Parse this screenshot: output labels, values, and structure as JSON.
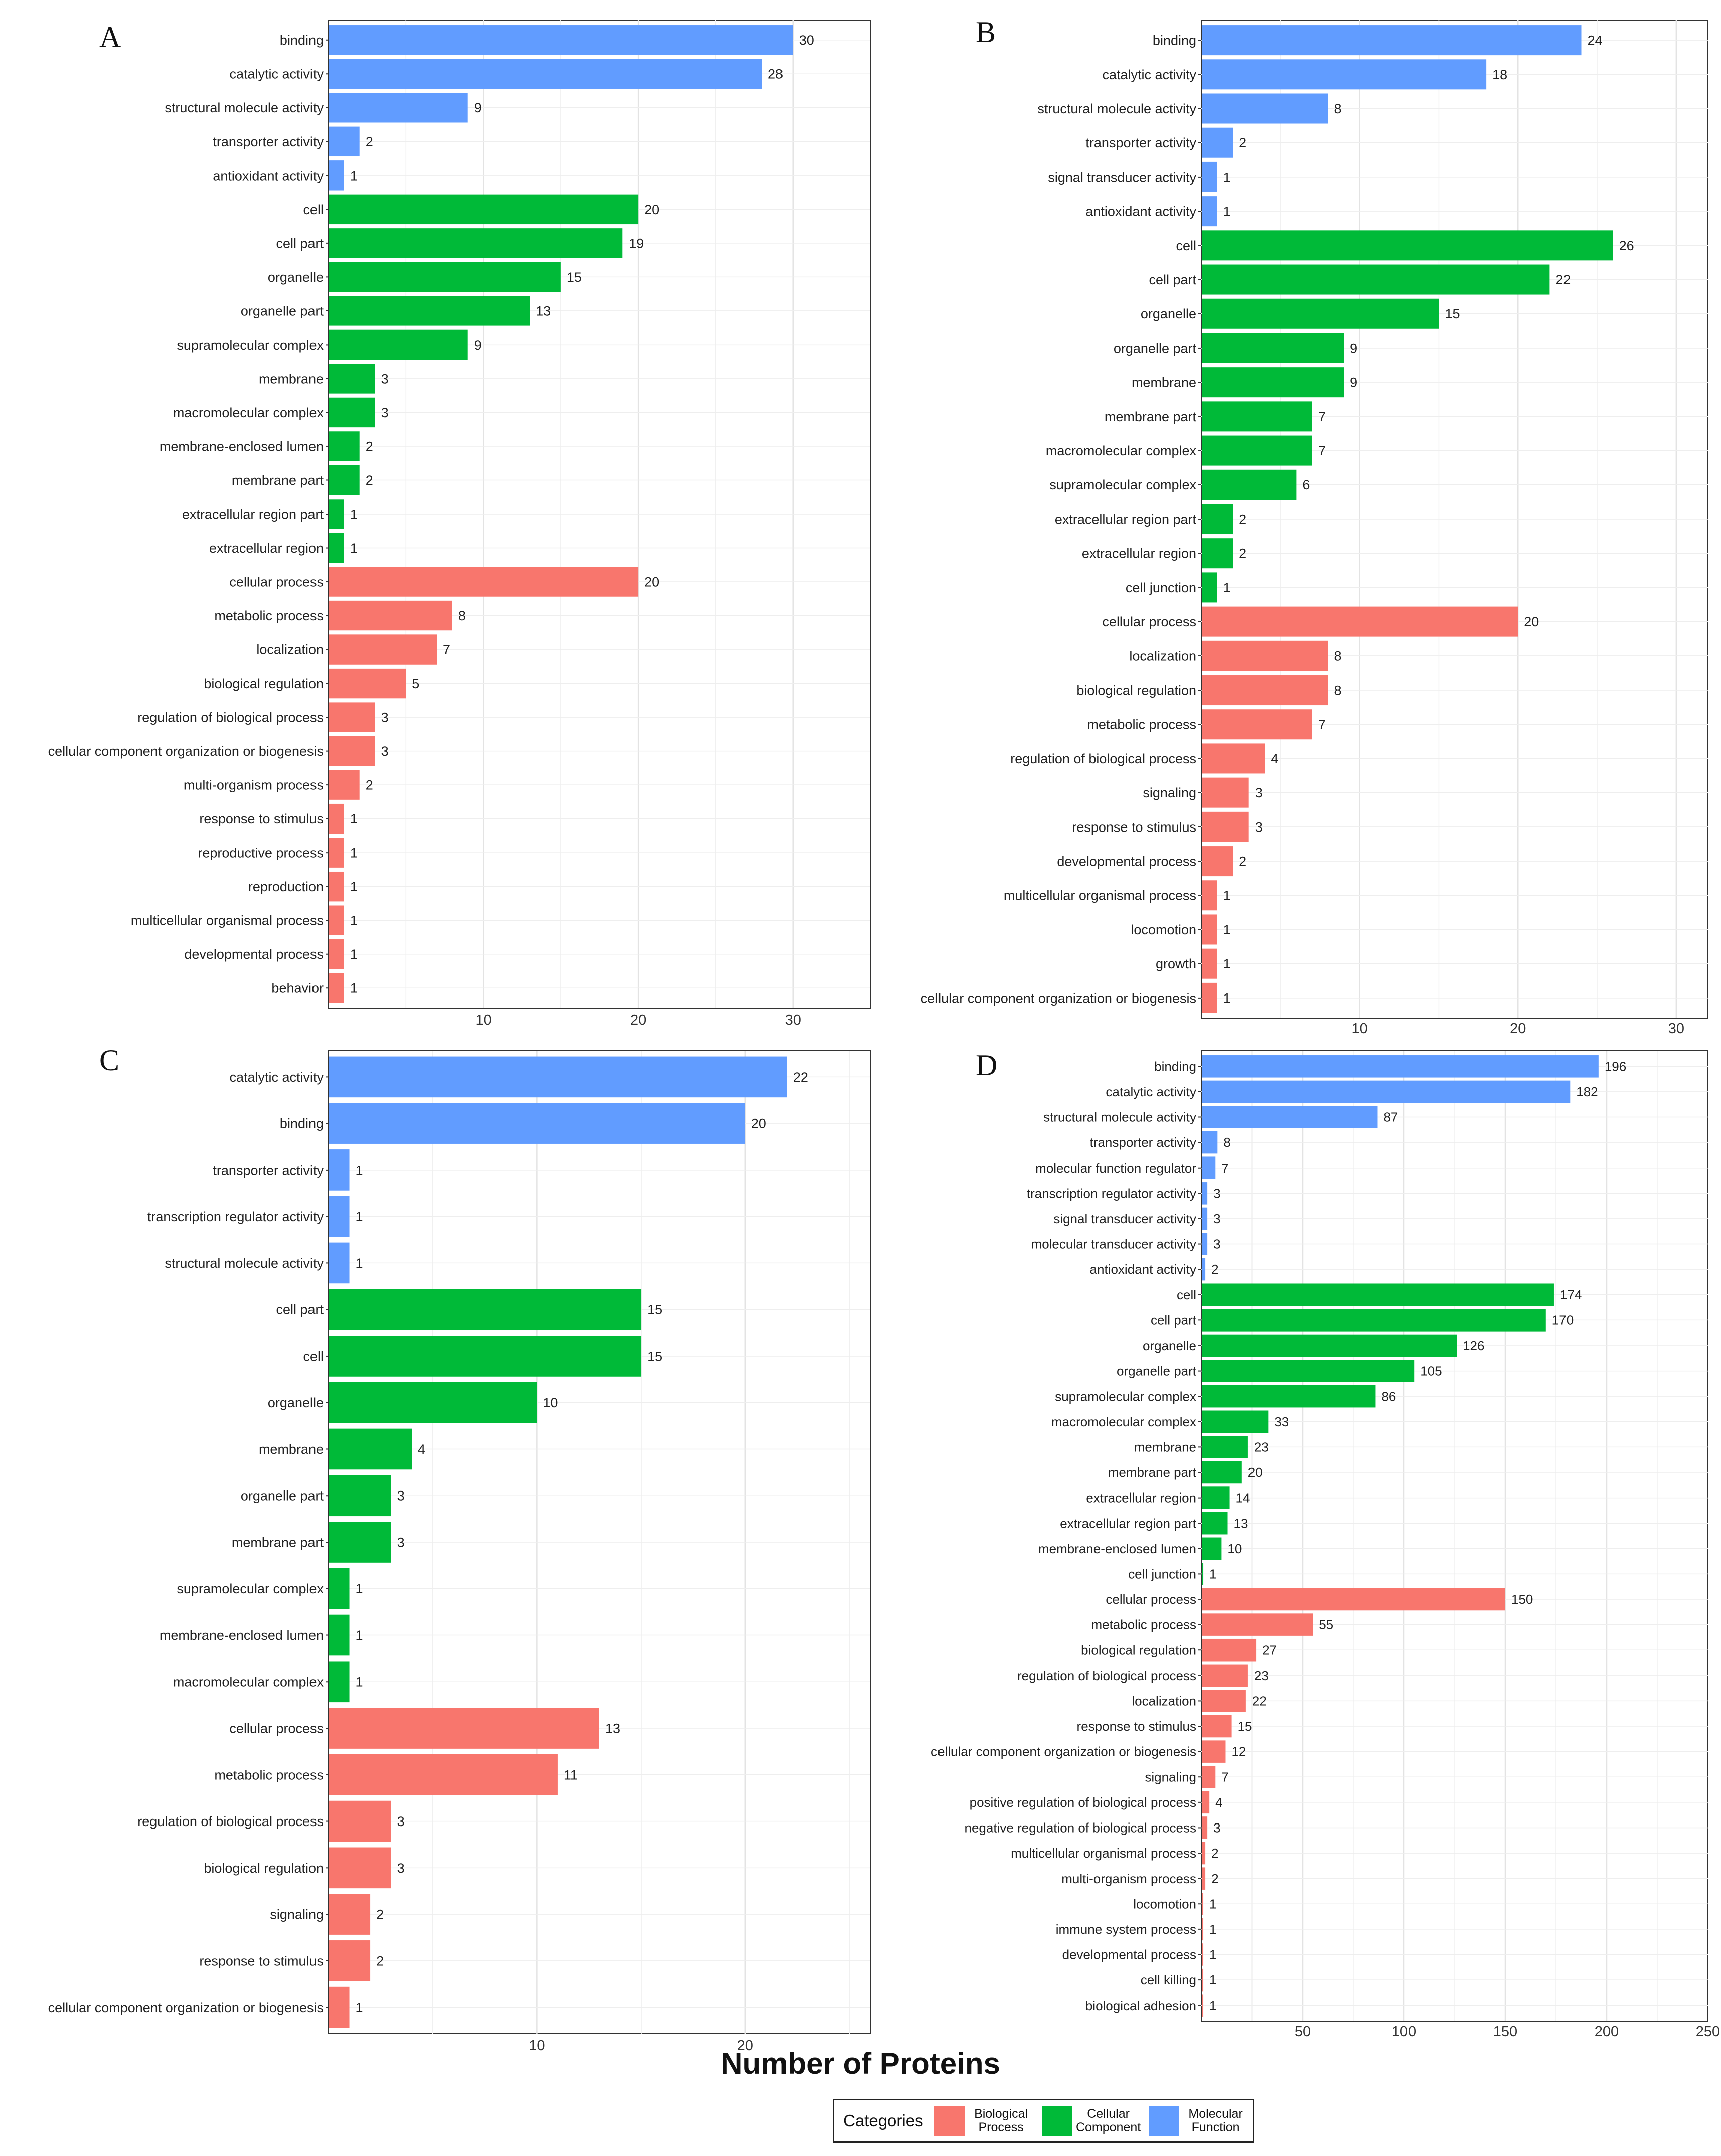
{
  "colors": {
    "Biological Process": "#f8766d",
    "Cellular Component": "#00ba38",
    "Molecular Function": "#619cff"
  },
  "x_axis_title": "Number of Proteins",
  "legend": {
    "title": "Categories",
    "items": [
      {
        "label": "Biological Process",
        "category": "Biological Process"
      },
      {
        "label": "Cellular Component",
        "category": "Cellular Component"
      },
      {
        "label": "Molecular Function",
        "category": "Molecular Function"
      }
    ]
  },
  "chart_data": [
    {
      "panel": "A",
      "type": "bar",
      "orientation": "horizontal",
      "xlabel": "Number of Proteins",
      "xlim": [
        0,
        35
      ],
      "xticks": [
        10,
        20,
        30
      ],
      "bars": [
        {
          "label": "binding",
          "value": 30,
          "category": "Molecular Function"
        },
        {
          "label": "catalytic activity",
          "value": 28,
          "category": "Molecular Function"
        },
        {
          "label": "structural molecule activity",
          "value": 9,
          "category": "Molecular Function"
        },
        {
          "label": "transporter activity",
          "value": 2,
          "category": "Molecular Function"
        },
        {
          "label": "antioxidant activity",
          "value": 1,
          "category": "Molecular Function"
        },
        {
          "label": "cell",
          "value": 20,
          "category": "Cellular Component"
        },
        {
          "label": "cell part",
          "value": 19,
          "category": "Cellular Component"
        },
        {
          "label": "organelle",
          "value": 15,
          "category": "Cellular Component"
        },
        {
          "label": "organelle part",
          "value": 13,
          "category": "Cellular Component"
        },
        {
          "label": "supramolecular complex",
          "value": 9,
          "category": "Cellular Component"
        },
        {
          "label": "membrane",
          "value": 3,
          "category": "Cellular Component"
        },
        {
          "label": "macromolecular complex",
          "value": 3,
          "category": "Cellular Component"
        },
        {
          "label": "membrane-enclosed lumen",
          "value": 2,
          "category": "Cellular Component"
        },
        {
          "label": "membrane part",
          "value": 2,
          "category": "Cellular Component"
        },
        {
          "label": "extracellular region part",
          "value": 1,
          "category": "Cellular Component"
        },
        {
          "label": "extracellular region",
          "value": 1,
          "category": "Cellular Component"
        },
        {
          "label": "cellular process",
          "value": 20,
          "category": "Biological Process"
        },
        {
          "label": "metabolic process",
          "value": 8,
          "category": "Biological Process"
        },
        {
          "label": "localization",
          "value": 7,
          "category": "Biological Process"
        },
        {
          "label": "biological regulation",
          "value": 5,
          "category": "Biological Process"
        },
        {
          "label": "regulation of biological process",
          "value": 3,
          "category": "Biological Process"
        },
        {
          "label": "cellular component organization or biogenesis",
          "value": 3,
          "category": "Biological Process"
        },
        {
          "label": "multi-organism process",
          "value": 2,
          "category": "Biological Process"
        },
        {
          "label": "response to stimulus",
          "value": 1,
          "category": "Biological Process"
        },
        {
          "label": "reproductive process",
          "value": 1,
          "category": "Biological Process"
        },
        {
          "label": "reproduction",
          "value": 1,
          "category": "Biological Process"
        },
        {
          "label": "multicellular organismal process",
          "value": 1,
          "category": "Biological Process"
        },
        {
          "label": "developmental process",
          "value": 1,
          "category": "Biological Process"
        },
        {
          "label": "behavior",
          "value": 1,
          "category": "Biological Process"
        }
      ]
    },
    {
      "panel": "B",
      "type": "bar",
      "orientation": "horizontal",
      "xlabel": "Number of Proteins",
      "xlim": [
        0,
        32
      ],
      "xticks": [
        10,
        20,
        30
      ],
      "bars": [
        {
          "label": "binding",
          "value": 24,
          "category": "Molecular Function"
        },
        {
          "label": "catalytic activity",
          "value": 18,
          "category": "Molecular Function"
        },
        {
          "label": "structural molecule activity",
          "value": 8,
          "category": "Molecular Function"
        },
        {
          "label": "transporter activity",
          "value": 2,
          "category": "Molecular Function"
        },
        {
          "label": "signal transducer activity",
          "value": 1,
          "category": "Molecular Function"
        },
        {
          "label": "antioxidant activity",
          "value": 1,
          "category": "Molecular Function"
        },
        {
          "label": "cell",
          "value": 26,
          "category": "Cellular Component"
        },
        {
          "label": "cell part",
          "value": 22,
          "category": "Cellular Component"
        },
        {
          "label": "organelle",
          "value": 15,
          "category": "Cellular Component"
        },
        {
          "label": "organelle part",
          "value": 9,
          "category": "Cellular Component"
        },
        {
          "label": "membrane",
          "value": 9,
          "category": "Cellular Component"
        },
        {
          "label": "membrane part",
          "value": 7,
          "category": "Cellular Component"
        },
        {
          "label": "macromolecular complex",
          "value": 7,
          "category": "Cellular Component"
        },
        {
          "label": "supramolecular complex",
          "value": 6,
          "category": "Cellular Component"
        },
        {
          "label": "extracellular region part",
          "value": 2,
          "category": "Cellular Component"
        },
        {
          "label": "extracellular region",
          "value": 2,
          "category": "Cellular Component"
        },
        {
          "label": "cell junction",
          "value": 1,
          "category": "Cellular Component"
        },
        {
          "label": "cellular process",
          "value": 20,
          "category": "Biological Process"
        },
        {
          "label": "localization",
          "value": 8,
          "category": "Biological Process"
        },
        {
          "label": "biological regulation",
          "value": 8,
          "category": "Biological Process"
        },
        {
          "label": "metabolic process",
          "value": 7,
          "category": "Biological Process"
        },
        {
          "label": "regulation of biological process",
          "value": 4,
          "category": "Biological Process"
        },
        {
          "label": "signaling",
          "value": 3,
          "category": "Biological Process"
        },
        {
          "label": "response to stimulus",
          "value": 3,
          "category": "Biological Process"
        },
        {
          "label": "developmental process",
          "value": 2,
          "category": "Biological Process"
        },
        {
          "label": "multicellular organismal process",
          "value": 1,
          "category": "Biological Process"
        },
        {
          "label": "locomotion",
          "value": 1,
          "category": "Biological Process"
        },
        {
          "label": "growth",
          "value": 1,
          "category": "Biological Process"
        },
        {
          "label": "cellular component organization or biogenesis",
          "value": 1,
          "category": "Biological Process"
        }
      ]
    },
    {
      "panel": "C",
      "type": "bar",
      "orientation": "horizontal",
      "xlabel": "Number of Proteins",
      "xlim": [
        0,
        26
      ],
      "xticks": [
        10,
        20
      ],
      "bars": [
        {
          "label": "catalytic activity",
          "value": 22,
          "category": "Molecular Function"
        },
        {
          "label": "binding",
          "value": 20,
          "category": "Molecular Function"
        },
        {
          "label": "transporter activity",
          "value": 1,
          "category": "Molecular Function"
        },
        {
          "label": "transcription regulator activity",
          "value": 1,
          "category": "Molecular Function"
        },
        {
          "label": "structural molecule activity",
          "value": 1,
          "category": "Molecular Function"
        },
        {
          "label": "cell part",
          "value": 15,
          "category": "Cellular Component"
        },
        {
          "label": "cell",
          "value": 15,
          "category": "Cellular Component"
        },
        {
          "label": "organelle",
          "value": 10,
          "category": "Cellular Component"
        },
        {
          "label": "membrane",
          "value": 4,
          "category": "Cellular Component"
        },
        {
          "label": "organelle part",
          "value": 3,
          "category": "Cellular Component"
        },
        {
          "label": "membrane part",
          "value": 3,
          "category": "Cellular Component"
        },
        {
          "label": "supramolecular complex",
          "value": 1,
          "category": "Cellular Component"
        },
        {
          "label": "membrane-enclosed lumen",
          "value": 1,
          "category": "Cellular Component"
        },
        {
          "label": "macromolecular complex",
          "value": 1,
          "category": "Cellular Component"
        },
        {
          "label": "cellular process",
          "value": 13,
          "category": "Biological Process"
        },
        {
          "label": "metabolic process",
          "value": 11,
          "category": "Biological Process"
        },
        {
          "label": "regulation of biological process",
          "value": 3,
          "category": "Biological Process"
        },
        {
          "label": "biological regulation",
          "value": 3,
          "category": "Biological Process"
        },
        {
          "label": "signaling",
          "value": 2,
          "category": "Biological Process"
        },
        {
          "label": "response to stimulus",
          "value": 2,
          "category": "Biological Process"
        },
        {
          "label": "cellular component organization or biogenesis",
          "value": 1,
          "category": "Biological Process"
        }
      ]
    },
    {
      "panel": "D",
      "type": "bar",
      "orientation": "horizontal",
      "xlabel": "Number of Proteins",
      "xlim": [
        0,
        250
      ],
      "xticks": [
        50,
        100,
        150,
        200,
        250
      ],
      "bars": [
        {
          "label": "binding",
          "value": 196,
          "category": "Molecular Function"
        },
        {
          "label": "catalytic activity",
          "value": 182,
          "category": "Molecular Function"
        },
        {
          "label": "structural molecule activity",
          "value": 87,
          "category": "Molecular Function"
        },
        {
          "label": "transporter activity",
          "value": 8,
          "category": "Molecular Function"
        },
        {
          "label": "molecular function regulator",
          "value": 7,
          "category": "Molecular Function"
        },
        {
          "label": "transcription regulator activity",
          "value": 3,
          "category": "Molecular Function"
        },
        {
          "label": "signal transducer activity",
          "value": 3,
          "category": "Molecular Function"
        },
        {
          "label": "molecular transducer activity",
          "value": 3,
          "category": "Molecular Function"
        },
        {
          "label": "antioxidant activity",
          "value": 2,
          "category": "Molecular Function"
        },
        {
          "label": "cell",
          "value": 174,
          "category": "Cellular Component"
        },
        {
          "label": "cell part",
          "value": 170,
          "category": "Cellular Component"
        },
        {
          "label": "organelle",
          "value": 126,
          "category": "Cellular Component"
        },
        {
          "label": "organelle part",
          "value": 105,
          "category": "Cellular Component"
        },
        {
          "label": "supramolecular complex",
          "value": 86,
          "category": "Cellular Component"
        },
        {
          "label": "macromolecular complex",
          "value": 33,
          "category": "Cellular Component"
        },
        {
          "label": "membrane",
          "value": 23,
          "category": "Cellular Component"
        },
        {
          "label": "membrane part",
          "value": 20,
          "category": "Cellular Component"
        },
        {
          "label": "extracellular region",
          "value": 14,
          "category": "Cellular Component"
        },
        {
          "label": "extracellular region part",
          "value": 13,
          "category": "Cellular Component"
        },
        {
          "label": "membrane-enclosed lumen",
          "value": 10,
          "category": "Cellular Component"
        },
        {
          "label": "cell junction",
          "value": 1,
          "category": "Cellular Component"
        },
        {
          "label": "cellular process",
          "value": 150,
          "category": "Biological Process"
        },
        {
          "label": "metabolic process",
          "value": 55,
          "category": "Biological Process"
        },
        {
          "label": "biological regulation",
          "value": 27,
          "category": "Biological Process"
        },
        {
          "label": "regulation of biological process",
          "value": 23,
          "category": "Biological Process"
        },
        {
          "label": "localization",
          "value": 22,
          "category": "Biological Process"
        },
        {
          "label": "response to stimulus",
          "value": 15,
          "category": "Biological Process"
        },
        {
          "label": "cellular component organization or biogenesis",
          "value": 12,
          "category": "Biological Process"
        },
        {
          "label": "signaling",
          "value": 7,
          "category": "Biological Process"
        },
        {
          "label": "positive regulation of biological process",
          "value": 4,
          "category": "Biological Process"
        },
        {
          "label": "negative regulation of biological process",
          "value": 3,
          "category": "Biological Process"
        },
        {
          "label": "multicellular organismal process",
          "value": 2,
          "category": "Biological Process"
        },
        {
          "label": "multi-organism process",
          "value": 2,
          "category": "Biological Process"
        },
        {
          "label": "locomotion",
          "value": 1,
          "category": "Biological Process"
        },
        {
          "label": "immune system process",
          "value": 1,
          "category": "Biological Process"
        },
        {
          "label": "developmental process",
          "value": 1,
          "category": "Biological Process"
        },
        {
          "label": "cell killing",
          "value": 1,
          "category": "Biological Process"
        },
        {
          "label": "biological adhesion",
          "value": 1,
          "category": "Biological Process"
        }
      ]
    }
  ]
}
